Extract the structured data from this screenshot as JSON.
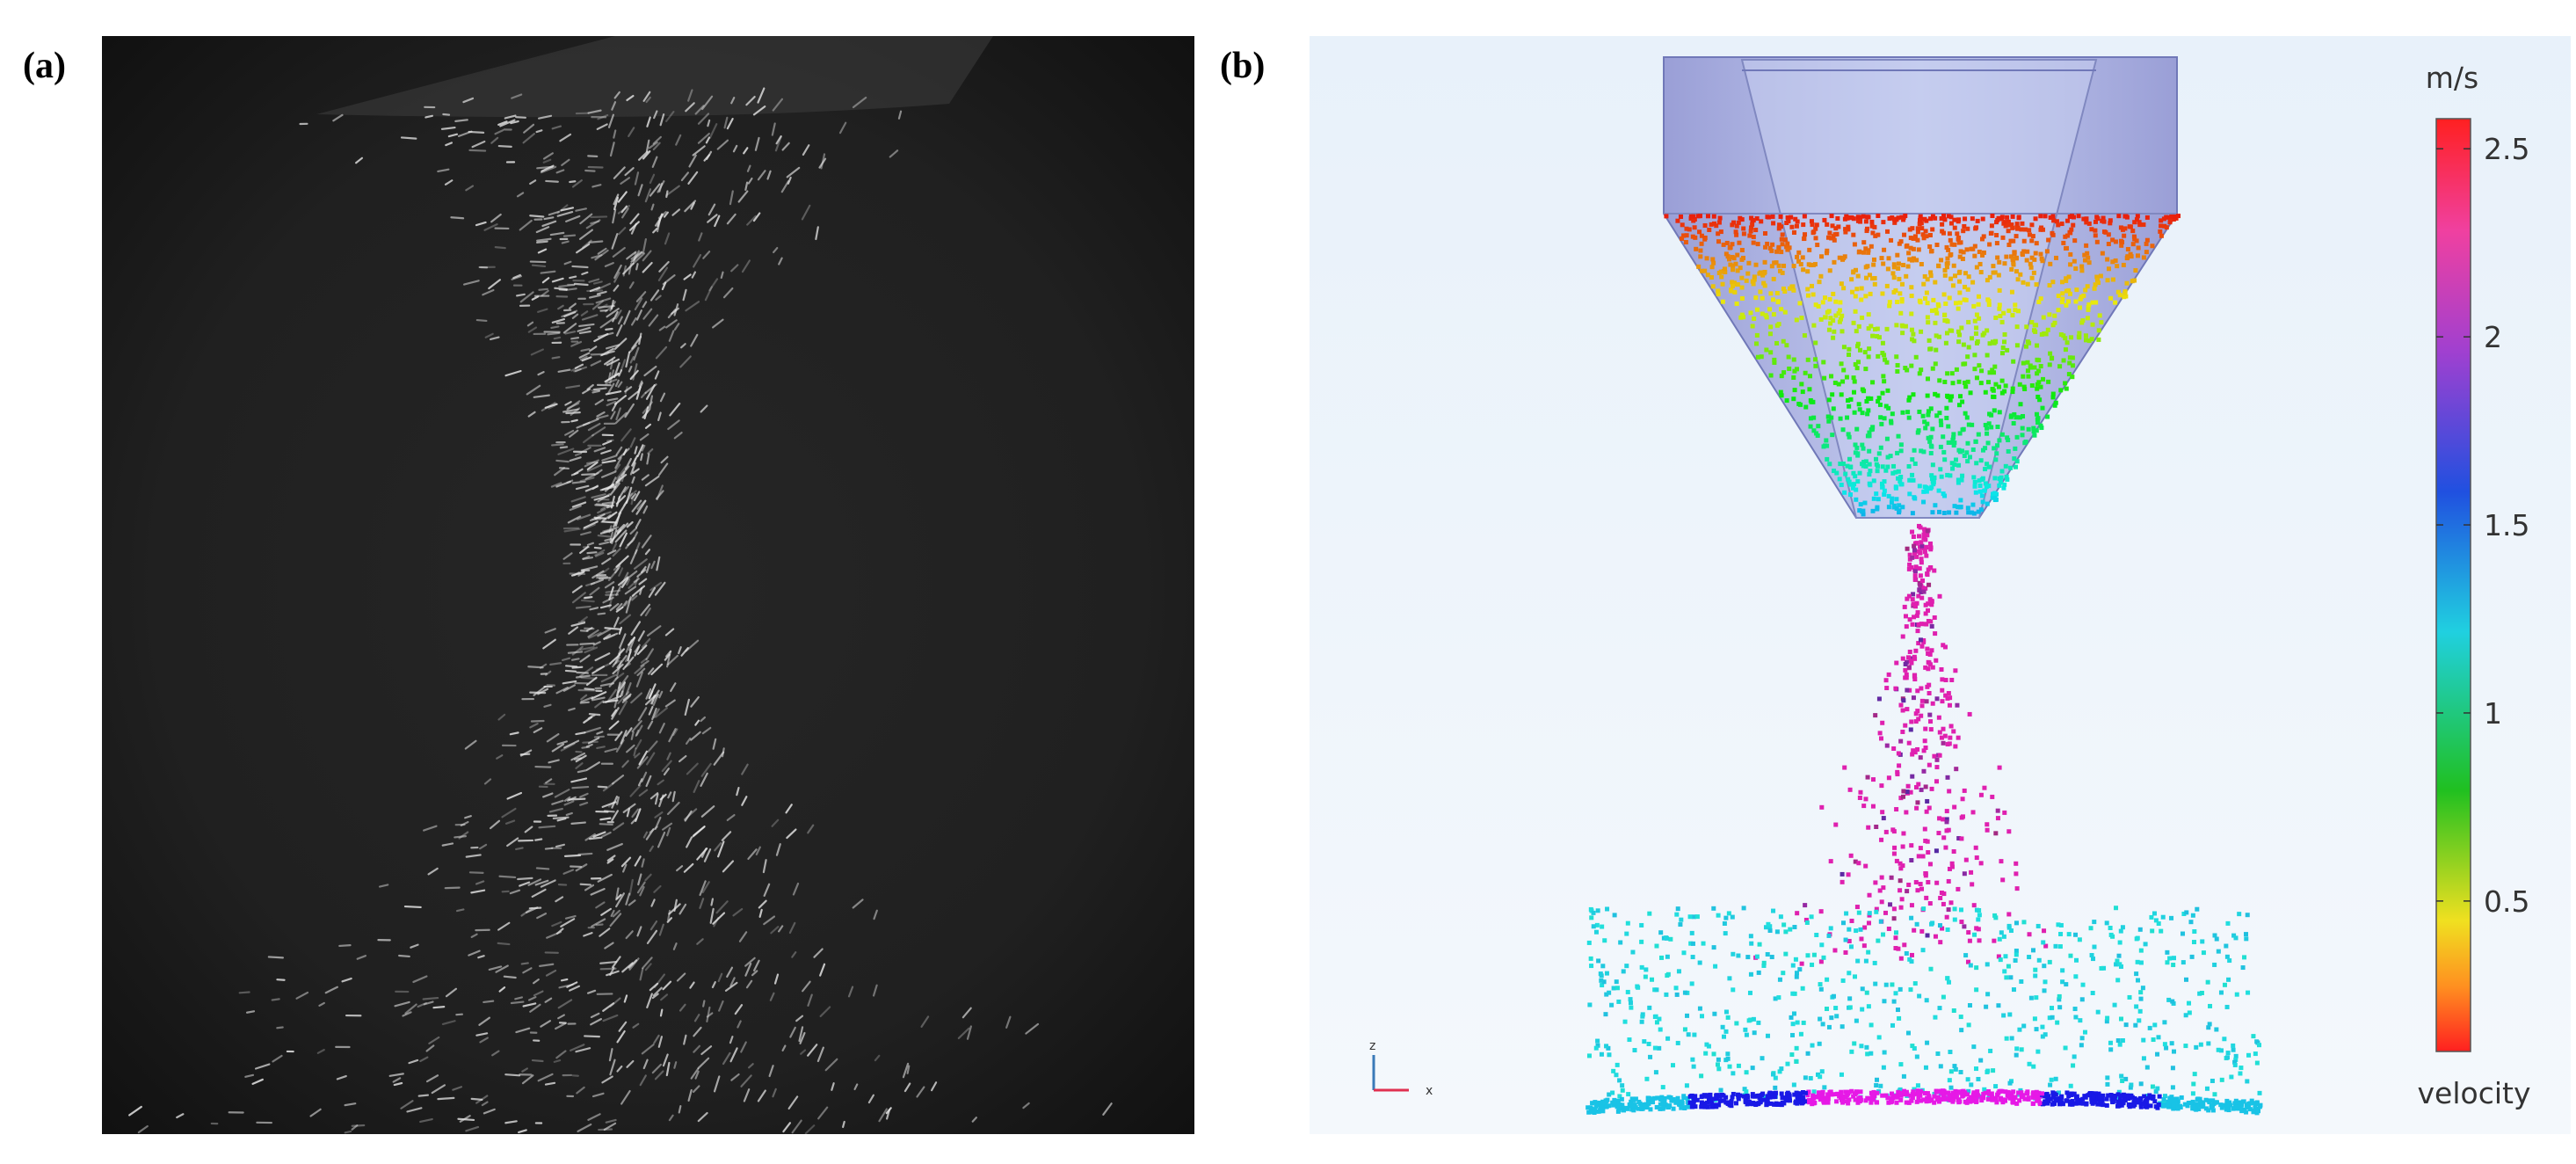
{
  "panels": [
    {
      "label": "(a)"
    },
    {
      "label": "(b)",
      "colorbar": {
        "unit": "m/s",
        "title": "velocity",
        "lim": [
          0.1,
          2.58
        ],
        "ticks": [
          0.5,
          1,
          1.5,
          2,
          2.5
        ]
      },
      "triad": [
        "z",
        "x"
      ]
    }
  ]
}
